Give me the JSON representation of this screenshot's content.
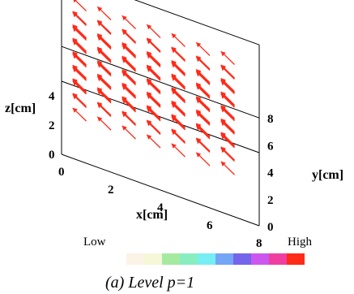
{
  "chart_data": {
    "type": "vector-field-3d",
    "caption": "(a) Level p=1",
    "axes": {
      "x": {
        "label": "x[cm]",
        "ticks": [
          "0",
          "2",
          "4",
          "6",
          "8"
        ],
        "range": [
          0,
          8
        ]
      },
      "y": {
        "label": "y[cm]",
        "ticks": [
          "0",
          "2",
          "4",
          "6",
          "8"
        ],
        "range": [
          0,
          8
        ]
      },
      "z": {
        "label": "z[cm]",
        "ticks": [
          "0",
          "2",
          "4"
        ],
        "range": [
          0,
          5
        ]
      }
    },
    "legend": {
      "low_label": "Low",
      "high_label": "High",
      "colors": [
        "#fbf3e6",
        "#f4f7d8",
        "#a6eaa0",
        "#88eec0",
        "#76eef4",
        "#74a6f6",
        "#7565ea",
        "#cc57ee",
        "#ee3fa0",
        "#ff2a18"
      ]
    },
    "arrow_color": "#ff2a18",
    "field": {
      "direction": [
        -0.55,
        0.4,
        0.2
      ],
      "x_values": [
        1,
        2,
        3,
        4,
        5,
        6,
        7
      ],
      "y_values": [
        1.5,
        2.5,
        3.5,
        4.5,
        5.5,
        6.5,
        7.5
      ],
      "z_values": [
        1.5,
        2.5,
        3.5
      ]
    }
  }
}
